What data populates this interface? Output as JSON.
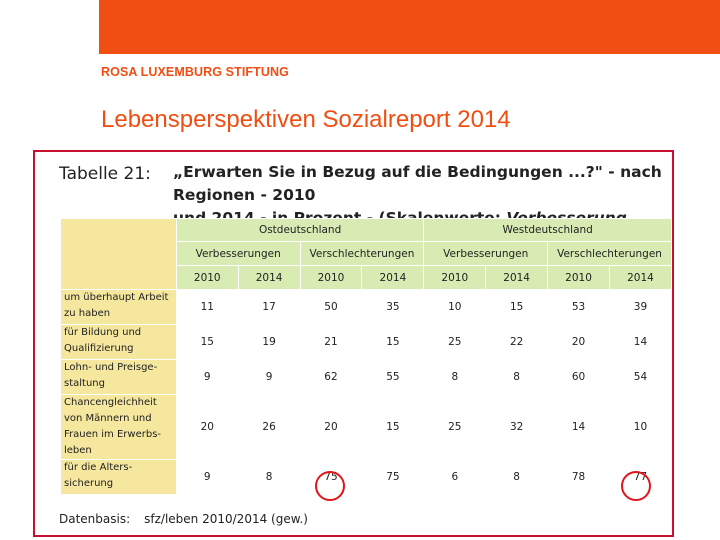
{
  "accent_color": "#f04e12",
  "header": {
    "org_name": "ROSA LUXEMBURG STIFTUNG",
    "title": "Lebensperspektiven Sozialreport 2014"
  },
  "table": {
    "label": "Tabelle 21:",
    "caption_line1": "„Erwarten Sie in Bezug auf die Bedingungen ...?\" - nach Regionen - 2010",
    "caption_line2_plain": "und 2014 - in Prozent - (Skalenwerte: ",
    "caption_line2_italic": "Verbesserung und Verschlechterung",
    "caption_line2_end": ")",
    "regions": [
      "Ostdeutschland",
      "Westdeutschland"
    ],
    "subheaders": [
      "Verbesserungen",
      "Verschlechterungen",
      "Verbesserungen",
      "Verschlechterungen"
    ],
    "years": [
      "2010",
      "2014",
      "2010",
      "2014",
      "2010",
      "2014",
      "2010",
      "2014"
    ],
    "rows": [
      {
        "label_lines": [
          "um überhaupt Arbeit",
          "zu haben"
        ],
        "values": [
          "11",
          "17",
          "50",
          "35",
          "10",
          "15",
          "53",
          "39"
        ]
      },
      {
        "label_lines": [
          "für Bildung und",
          "Qualifizierung"
        ],
        "values": [
          "15",
          "19",
          "21",
          "15",
          "25",
          "22",
          "20",
          "14"
        ]
      },
      {
        "label_lines": [
          "Lohn- und Preisge-",
          "staltung"
        ],
        "values": [
          "9",
          "9",
          "62",
          "55",
          "8",
          "8",
          "60",
          "54"
        ]
      },
      {
        "label_lines": [
          "Chancengleichheit",
          "von Männern und",
          "Frauen im Erwerbs-",
          "leben"
        ],
        "values": [
          "20",
          "26",
          "20",
          "15",
          "25",
          "32",
          "14",
          "10"
        ]
      },
      {
        "label_lines": [
          "für die Alters-",
          "sicherung"
        ],
        "values": [
          "9",
          "8",
          "75",
          "75",
          "6",
          "8",
          "78",
          "77"
        ]
      }
    ],
    "footer_label": "Datenbasis:",
    "footer_source": "sfz/leben 2010/2014 (gew.)"
  }
}
